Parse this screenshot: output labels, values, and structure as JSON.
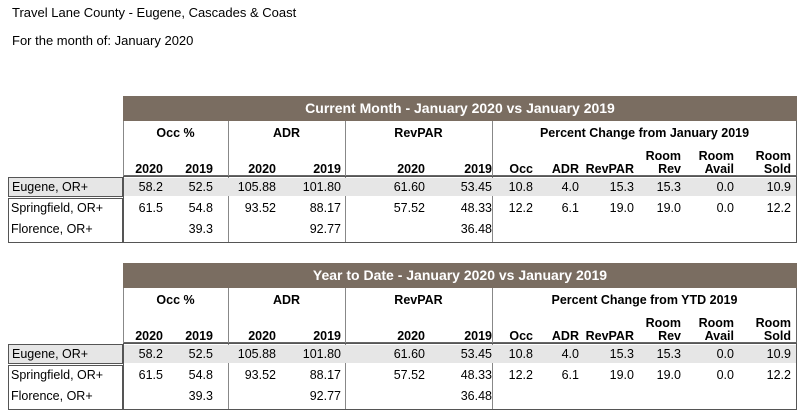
{
  "header": {
    "title": "Travel Lane County - Eugene, Cascades & Coast",
    "subtitle": "For the month of: January 2020"
  },
  "tables": [
    {
      "band": "Current Month - January 2020 vs January 2019",
      "groups": [
        "Occ %",
        "ADR",
        "RevPAR",
        "Percent Change from January 2019"
      ],
      "years": [
        "2020",
        "2019",
        "2020",
        "2019",
        "2020",
        "2019"
      ],
      "pc_cols": [
        {
          "l1": "",
          "l2": "Occ"
        },
        {
          "l1": "",
          "l2": "ADR"
        },
        {
          "l1": "",
          "l2": "RevPAR"
        },
        {
          "l1": "Room",
          "l2": "Rev"
        },
        {
          "l1": "Room",
          "l2": "Avail"
        },
        {
          "l1": "Room",
          "l2": "Sold"
        }
      ],
      "rows": [
        {
          "name": "Eugene, OR+",
          "occ20": "58.2",
          "occ19": "52.5",
          "adr20": "105.88",
          "adr19": "101.80",
          "rev20": "61.60",
          "rev19": "53.45",
          "pc_occ": "10.8",
          "pc_adr": "4.0",
          "pc_revpar": "15.3",
          "pc_rev": "15.3",
          "pc_avail": "0.0",
          "pc_sold": "10.9"
        },
        {
          "name": "Springfield, OR+",
          "occ20": "61.5",
          "occ19": "54.8",
          "adr20": "93.52",
          "adr19": "88.17",
          "rev20": "57.52",
          "rev19": "48.33",
          "pc_occ": "12.2",
          "pc_adr": "6.1",
          "pc_revpar": "19.0",
          "pc_rev": "19.0",
          "pc_avail": "0.0",
          "pc_sold": "12.2"
        },
        {
          "name": "Florence, OR+",
          "occ20": "",
          "occ19": "39.3",
          "adr20": "",
          "adr19": "92.77",
          "rev20": "",
          "rev19": "36.48",
          "pc_occ": "",
          "pc_adr": "",
          "pc_revpar": "",
          "pc_rev": "",
          "pc_avail": "",
          "pc_sold": ""
        }
      ]
    },
    {
      "band": "Year to Date - January 2020 vs January 2019",
      "groups": [
        "Occ %",
        "ADR",
        "RevPAR",
        "Percent Change from YTD 2019"
      ],
      "years": [
        "2020",
        "2019",
        "2020",
        "2019",
        "2020",
        "2019"
      ],
      "pc_cols": [
        {
          "l1": "",
          "l2": "Occ"
        },
        {
          "l1": "",
          "l2": "ADR"
        },
        {
          "l1": "",
          "l2": "RevPAR"
        },
        {
          "l1": "Room",
          "l2": "Rev"
        },
        {
          "l1": "Room",
          "l2": "Avail"
        },
        {
          "l1": "Room",
          "l2": "Sold"
        }
      ],
      "rows": [
        {
          "name": "Eugene, OR+",
          "occ20": "58.2",
          "occ19": "52.5",
          "adr20": "105.88",
          "adr19": "101.80",
          "rev20": "61.60",
          "rev19": "53.45",
          "pc_occ": "10.8",
          "pc_adr": "4.0",
          "pc_revpar": "15.3",
          "pc_rev": "15.3",
          "pc_avail": "0.0",
          "pc_sold": "10.9"
        },
        {
          "name": "Springfield, OR+",
          "occ20": "61.5",
          "occ19": "54.8",
          "adr20": "93.52",
          "adr19": "88.17",
          "rev20": "57.52",
          "rev19": "48.33",
          "pc_occ": "12.2",
          "pc_adr": "6.1",
          "pc_revpar": "19.0",
          "pc_rev": "19.0",
          "pc_avail": "0.0",
          "pc_sold": "12.2"
        },
        {
          "name": "Florence, OR+",
          "occ20": "",
          "occ19": "39.3",
          "adr20": "",
          "adr19": "92.77",
          "rev20": "",
          "rev19": "36.48",
          "pc_occ": "",
          "pc_adr": "",
          "pc_revpar": "",
          "pc_rev": "",
          "pc_avail": "",
          "pc_sold": ""
        }
      ]
    }
  ]
}
